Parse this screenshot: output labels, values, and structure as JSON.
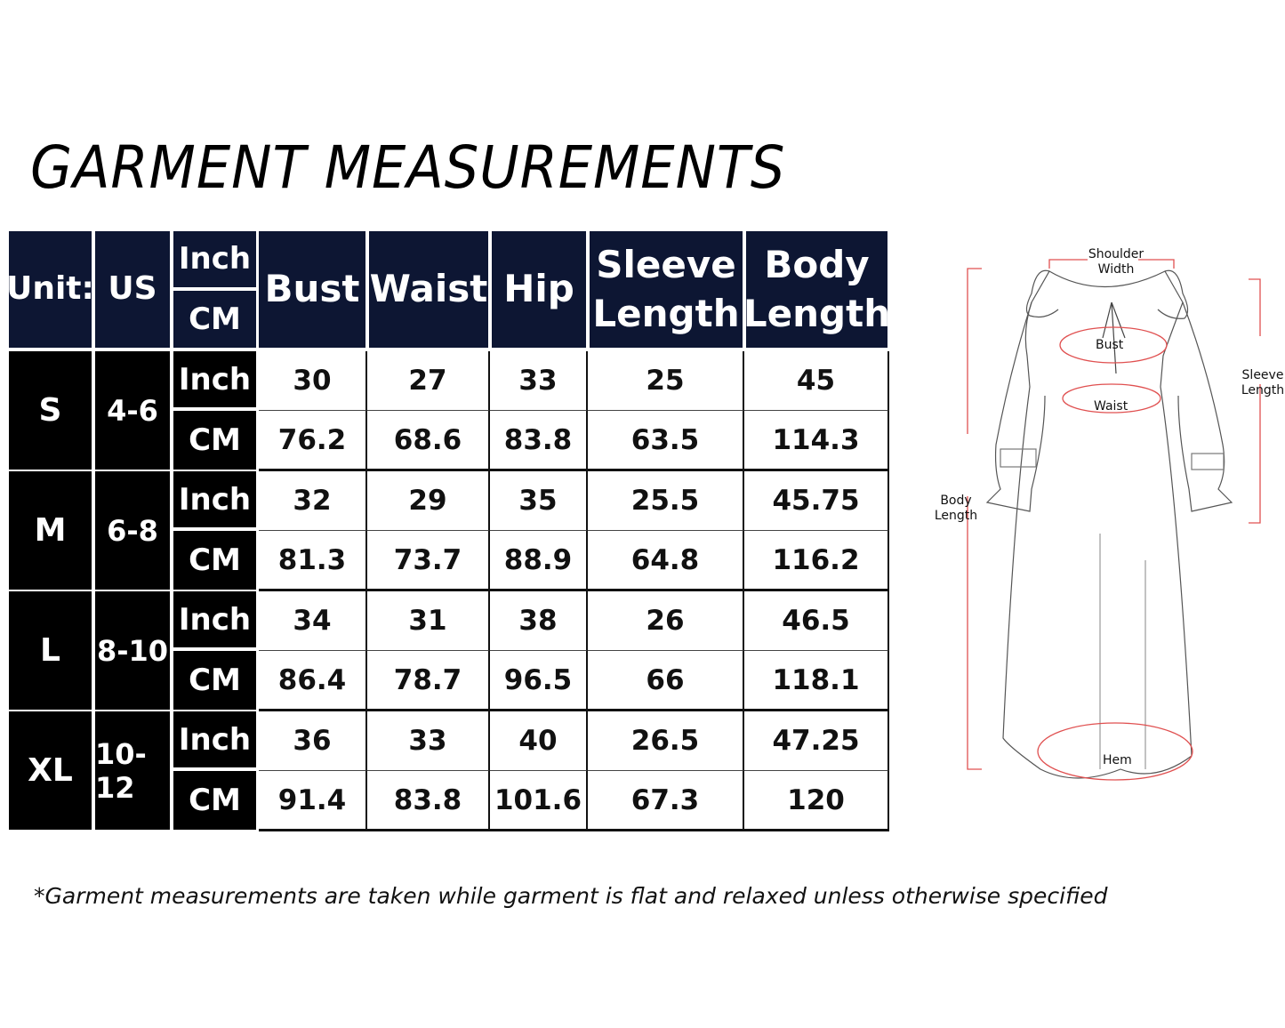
{
  "title": "GARMENT MEASUREMENTS",
  "header": {
    "unit_label": "Unit:",
    "system_label": "US",
    "unit_inch": "Inch",
    "unit_cm": "CM",
    "columns": [
      "Bust",
      "Waist",
      "Hip",
      "Sleeve Length",
      "Body Length"
    ]
  },
  "rows": [
    {
      "size": "S",
      "us": "4-6",
      "inch": [
        "30",
        "27",
        "33",
        "25",
        "45"
      ],
      "cm": [
        "76.2",
        "68.6",
        "83.8",
        "63.5",
        "114.3"
      ]
    },
    {
      "size": "M",
      "us": "6-8",
      "inch": [
        "32",
        "29",
        "35",
        "25.5",
        "45.75"
      ],
      "cm": [
        "81.3",
        "73.7",
        "88.9",
        "64.8",
        "116.2"
      ]
    },
    {
      "size": "L",
      "us": "8-10",
      "inch": [
        "34",
        "31",
        "38",
        "26",
        "46.5"
      ],
      "cm": [
        "86.4",
        "78.7",
        "96.5",
        "66",
        "118.1"
      ]
    },
    {
      "size": "XL",
      "us": "10-12",
      "inch": [
        "36",
        "33",
        "40",
        "26.5",
        "47.25"
      ],
      "cm": [
        "91.4",
        "83.8",
        "101.6",
        "67.3",
        "120"
      ]
    }
  ],
  "diagram": {
    "shoulder_width": "Shoulder Width",
    "bust": "Bust",
    "waist": "Waist",
    "sleeve_length": "Sleeve Length",
    "body_length": "Body Length",
    "hem": "Hem"
  },
  "colors": {
    "header_bg": "#0d1633",
    "size_bg": "#000000",
    "measure_line": "#e05050"
  },
  "note": "*Garment measurements are taken while garment is flat and relaxed unless otherwise specified"
}
